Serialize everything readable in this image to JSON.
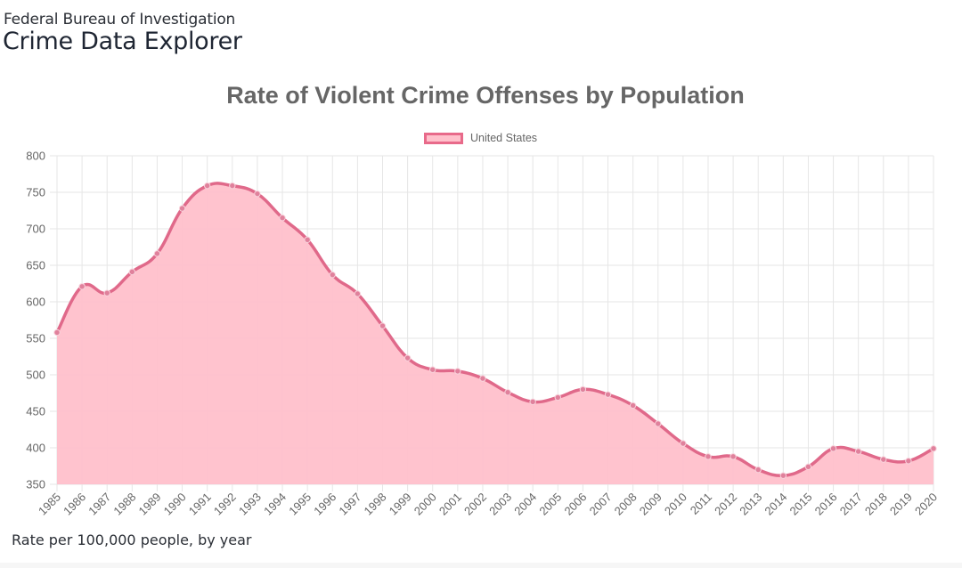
{
  "header": {
    "agency": "Federal Bureau of Investigation",
    "product": "Crime Data Explorer"
  },
  "footer": {
    "caption": "Rate per 100,000 people, by year"
  },
  "colors": {
    "line": "#e0698a",
    "fill": "#ffc0cb",
    "grid": "#e6e6e6",
    "text": "#666666"
  },
  "chart_data": {
    "type": "area",
    "title": "Rate of Violent Crime Offenses by Population",
    "xlabel": "",
    "ylabel": "Rate per 100,000 people, by year",
    "legend": {
      "position": "top",
      "entries": [
        "United States"
      ]
    },
    "grid": true,
    "ylim": [
      350,
      800
    ],
    "yticks": [
      800,
      750,
      700,
      650,
      600,
      550,
      500,
      450,
      400,
      350
    ],
    "categories": [
      "1985",
      "1986",
      "1987",
      "1988",
      "1989",
      "1990",
      "1991",
      "1992",
      "1993",
      "1994",
      "1995",
      "1996",
      "1997",
      "1998",
      "1999",
      "2000",
      "2001",
      "2002",
      "2003",
      "2004",
      "2005",
      "2006",
      "2007",
      "2008",
      "2009",
      "2010",
      "2011",
      "2012",
      "2013",
      "2014",
      "2015",
      "2016",
      "2017",
      "2018",
      "2019",
      "2020"
    ],
    "series": [
      {
        "name": "United States",
        "values": [
          558,
          621,
          612,
          641,
          666,
          728,
          759,
          759,
          748,
          715,
          685,
          637,
          611,
          567,
          523,
          507,
          505,
          495,
          476,
          463,
          469,
          480,
          473,
          458,
          433,
          406,
          388,
          388,
          370,
          362,
          374,
          399,
          395,
          384,
          382,
          399
        ]
      }
    ]
  }
}
